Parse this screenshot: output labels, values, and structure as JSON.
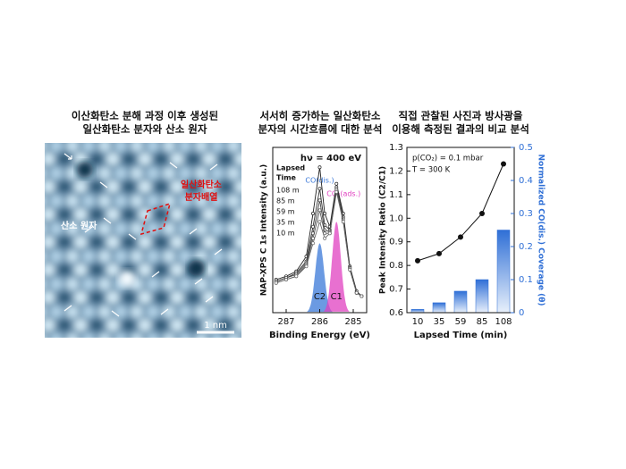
{
  "image_panel": {
    "title": [
      "이산화탄소 분해 과정 이후 생성된",
      "일산화탄소 분자와 산소 원자"
    ],
    "molecule_label": [
      "일산화탄소",
      "분자배열"
    ],
    "atom_label": "산소 원자",
    "scale_label": "1 nm"
  },
  "chart_data": [
    {
      "type": "line",
      "title": [
        "서서히 증가하는 일산화탄소",
        "분자의 시간흐름에 대한 분석"
      ],
      "annotation": "hν = 400 eV",
      "legend_title": [
        "Lapsed",
        "Time"
      ],
      "ylabel": "NAP-XPS  C 1s Intensity (a.u.)",
      "xlabel": "Binding Energy (eV)",
      "xlim": [
        287.4,
        284.6
      ],
      "xticks": [
        287,
        286,
        285
      ],
      "ylim": [
        0,
        1
      ],
      "x": [
        287.3,
        287.0,
        286.7,
        286.4,
        286.2,
        286.0,
        285.85,
        285.7,
        285.5,
        285.3,
        285.1,
        284.9,
        284.75
      ],
      "series": [
        {
          "name": "108 m",
          "color": "#222",
          "values": [
            0.2,
            0.22,
            0.25,
            0.34,
            0.6,
            0.88,
            0.6,
            0.52,
            0.78,
            0.6,
            0.28,
            0.13,
            0.1
          ]
        },
        {
          "name": "85 m",
          "color": "#333",
          "values": [
            0.19,
            0.21,
            0.24,
            0.31,
            0.52,
            0.75,
            0.53,
            0.5,
            0.76,
            0.58,
            0.27,
            0.12,
            0.1
          ]
        },
        {
          "name": "59 m",
          "color": "#444",
          "values": [
            0.19,
            0.21,
            0.23,
            0.3,
            0.48,
            0.68,
            0.5,
            0.49,
            0.75,
            0.57,
            0.27,
            0.12,
            0.1
          ]
        },
        {
          "name": "35 m",
          "color": "#555",
          "values": [
            0.18,
            0.2,
            0.22,
            0.29,
            0.45,
            0.62,
            0.48,
            0.48,
            0.74,
            0.56,
            0.26,
            0.12,
            0.1
          ]
        },
        {
          "name": "10 m",
          "color": "#666",
          "values": [
            0.18,
            0.2,
            0.22,
            0.28,
            0.42,
            0.55,
            0.45,
            0.48,
            0.73,
            0.55,
            0.26,
            0.12,
            0.1
          ]
        }
      ],
      "peaks": [
        {
          "name": "C2",
          "label": "CO(dis.)",
          "color": "#3a78d8",
          "center": 286.0,
          "width": 0.13,
          "height": 0.42
        },
        {
          "name": "C1",
          "label": "CO₂(ads.)",
          "color": "#e040c0",
          "center": 285.5,
          "width": 0.13,
          "height": 0.55
        }
      ]
    },
    {
      "type": "combo",
      "title": [
        "직접 관찰된 사진과 방사광을",
        "이용해 측정된 결과의 비교 분석"
      ],
      "annotations": [
        "p(CO₂) = 0.1 mbar",
        "T = 300 K"
      ],
      "xlabel": "Lapsed Time (min)",
      "ylabel": "Peak Intensity Ratio (C2/C1)",
      "y2label": "Normalized CO(dis.) Coverage (θ)",
      "categories": [
        "10",
        "35",
        "59",
        "85",
        "108"
      ],
      "ylim": [
        0.6,
        1.3
      ],
      "yticks": [
        0.6,
        0.7,
        0.8,
        0.9,
        {
          "value": 1,
          "label": "1.0"
        },
        1.1,
        1.2,
        1.3
      ],
      "y2lim": [
        0,
        0.5
      ],
      "y2ticks": [
        0,
        0.1,
        0.2,
        0.3,
        0.4,
        0.5
      ],
      "series": [
        {
          "name": "Peak Intensity Ratio (C2/C1)",
          "color": "#111",
          "values": [
            0.82,
            0.85,
            0.92,
            1.02,
            1.23
          ]
        },
        {
          "name": "Normalized CO(dis.) Coverage (θ)",
          "color": "#2f6fd6",
          "axis": "y2",
          "values": [
            0.01,
            0.03,
            0.065,
            0.1,
            0.25
          ]
        }
      ]
    }
  ]
}
